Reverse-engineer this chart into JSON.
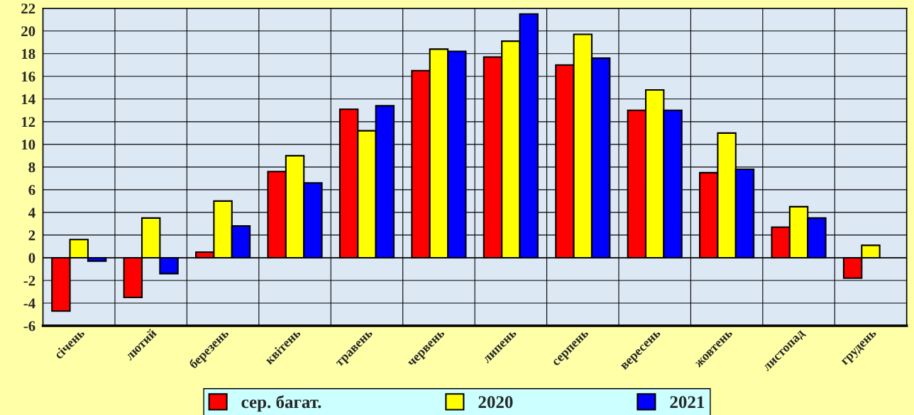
{
  "chart_data": {
    "type": "bar",
    "categories": [
      "січень",
      "лютий",
      "березень",
      "квітень",
      "травень",
      "червень",
      "липень",
      "серпень",
      "вересень",
      "жовтень",
      "листопад",
      "грудень"
    ],
    "series": [
      {
        "name": "сер. багат.",
        "color": "#ff0000",
        "values": [
          -4.7,
          -3.5,
          0.5,
          7.6,
          13.1,
          16.5,
          17.7,
          17.0,
          13.0,
          7.5,
          2.7,
          -1.8
        ]
      },
      {
        "name": "2020",
        "color": "#ffff00",
        "values": [
          1.6,
          3.5,
          5.0,
          9.0,
          11.2,
          18.4,
          19.1,
          19.7,
          14.8,
          11.0,
          4.5,
          1.1
        ]
      },
      {
        "name": "2021",
        "color": "#0000ff",
        "values": [
          -0.3,
          -1.4,
          2.8,
          6.6,
          13.4,
          18.2,
          21.5,
          17.6,
          13.0,
          7.8,
          3.5,
          null
        ]
      }
    ],
    "ylim": [
      -6,
      22
    ],
    "yticks": [
      -6,
      -4,
      -2,
      0,
      2,
      4,
      6,
      8,
      10,
      12,
      14,
      16,
      18,
      20,
      22
    ],
    "grid": true,
    "legend": "bottom"
  }
}
